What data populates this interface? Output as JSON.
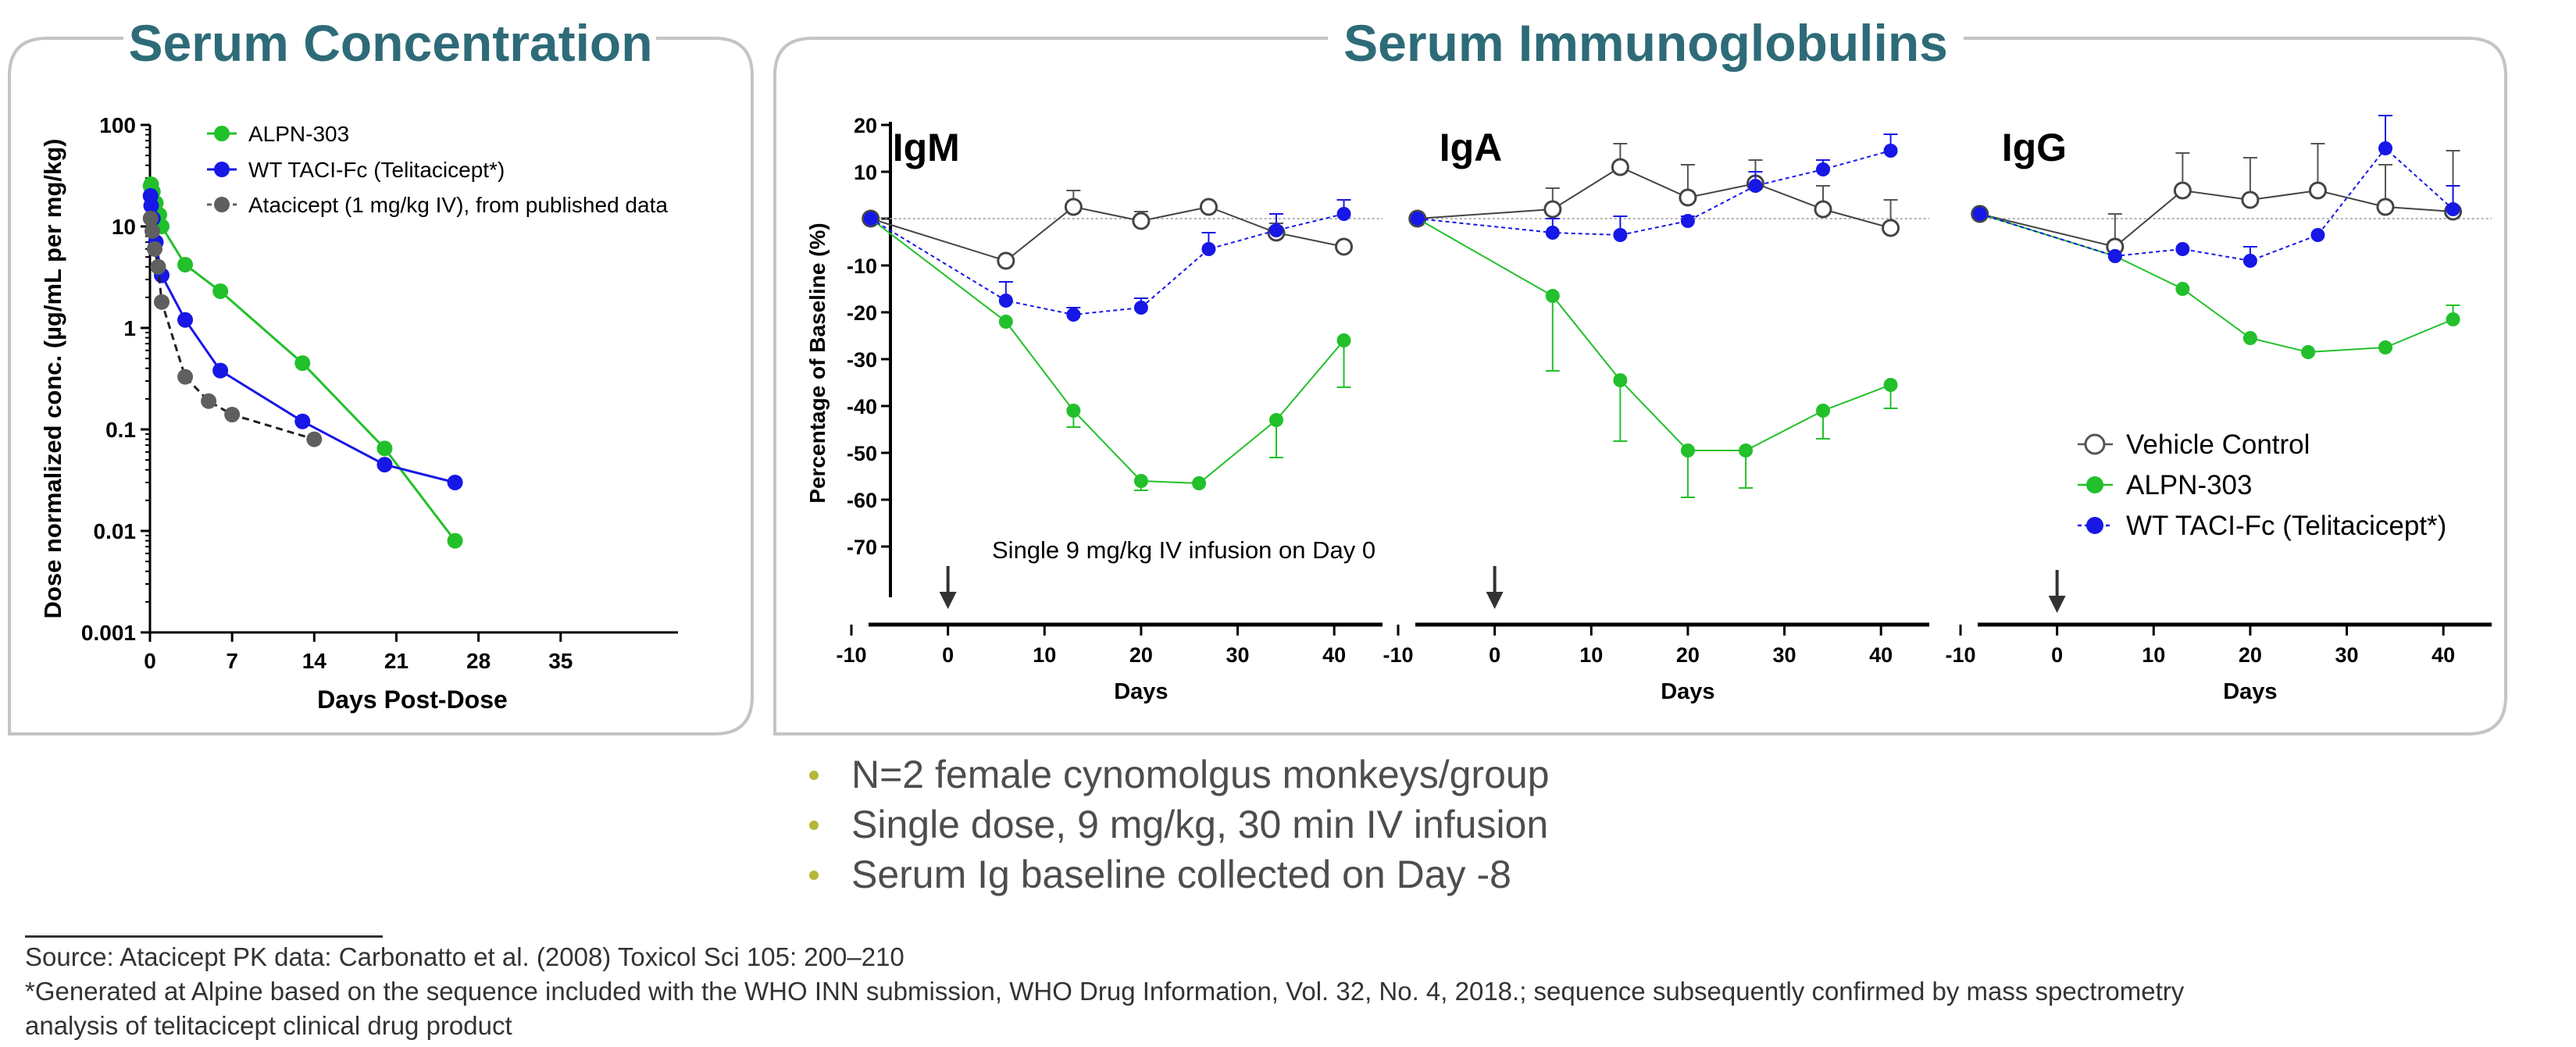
{
  "left_panel": {
    "title": "Serum Concentration"
  },
  "right_panel": {
    "title": "Serum Immunoglobulins"
  },
  "colors": {
    "title": "#2e6b78",
    "alpn": "#22c02a",
    "wt": "#1717e6",
    "atacicept": "#5f5f5f",
    "vehicle": "#555555",
    "frame": "#c4c4c4"
  },
  "chart_data": [
    {
      "id": "pk",
      "type": "line",
      "yscale": "log",
      "title": "Serum Concentration",
      "xlabel": "Days Post-Dose",
      "ylabel": "Dose normalized conc. (µg/mL per mg/kg)",
      "xlim": [
        0,
        45
      ],
      "ylim": [
        0.001,
        100
      ],
      "xticks": [
        0,
        7,
        14,
        21,
        28,
        35
      ],
      "yticks": [
        0.001,
        0.01,
        0.1,
        1,
        10,
        100
      ],
      "ytick_labels": [
        "0.001",
        "0.01",
        "0.1",
        "1",
        "10",
        "100"
      ],
      "legend_position": "top",
      "series": [
        {
          "name": "ALPN-303",
          "color": "#22c02a",
          "dash": false,
          "points": [
            [
              0.05,
              25
            ],
            [
              0.1,
              26
            ],
            [
              0.25,
              22
            ],
            [
              0.5,
              17
            ],
            [
              0.8,
              13
            ],
            [
              1,
              10
            ],
            [
              3,
              4.2
            ],
            [
              6,
              2.3
            ],
            [
              13,
              0.45
            ],
            [
              20,
              0.065
            ],
            [
              26,
              0.008
            ]
          ]
        },
        {
          "name": "WT TACI-Fc (Telitacicept*)",
          "color": "#1717e6",
          "dash": false,
          "points": [
            [
              0.05,
              20
            ],
            [
              0.1,
              16
            ],
            [
              0.25,
              12
            ],
            [
              0.5,
              7
            ],
            [
              1,
              3.3
            ],
            [
              3,
              1.2
            ],
            [
              6,
              0.38
            ],
            [
              13,
              0.12
            ],
            [
              20,
              0.045
            ],
            [
              26,
              0.03
            ]
          ]
        },
        {
          "name": "Atacicept (1 mg/kg IV), from published data",
          "color": "#5f5f5f",
          "dash": true,
          "points": [
            [
              0.05,
              12
            ],
            [
              0.2,
              9
            ],
            [
              0.4,
              6
            ],
            [
              0.7,
              4
            ],
            [
              1,
              1.8
            ],
            [
              3,
              0.33
            ],
            [
              5,
              0.19
            ],
            [
              7,
              0.14
            ],
            [
              14,
              0.08
            ]
          ]
        }
      ]
    },
    {
      "id": "ig",
      "type": "line",
      "title": "Serum Immunoglobulins",
      "ylabel": "Percentage of Baseline (%)",
      "xlabel": "Days",
      "xlim": [
        -10,
        45
      ],
      "ylim": [
        -80,
        20
      ],
      "xticks": [
        -10,
        0,
        10,
        20,
        30,
        40
      ],
      "yticks": [
        20,
        10,
        0,
        -10,
        -20,
        -30,
        -40,
        -50,
        -60,
        -70
      ],
      "annotation": "Single 9 mg/kg IV infusion on Day 0",
      "arrow_day": 0,
      "legend": [
        "Vehicle Control",
        "ALPN-303",
        "WT TACI-Fc (Telitacicept*)"
      ],
      "panels": [
        {
          "title": "IgM",
          "series": [
            {
              "name": "Vehicle Control",
              "x": [
                -8,
                6,
                13,
                20,
                27,
                34,
                41
              ],
              "y": [
                0,
                -9,
                2.5,
                -0.5,
                2.5,
                -3,
                -6
              ],
              "err": [
                0,
                0,
                3.5,
                2,
                0,
                2,
                0
              ]
            },
            {
              "name": "ALPN-303",
              "x": [
                -8,
                6,
                13,
                20,
                26,
                34,
                41
              ],
              "y": [
                0,
                -22,
                -41,
                -56,
                -56.5,
                -43,
                -26
              ],
              "err": [
                0,
                0,
                3.5,
                2,
                0,
                8,
                10
              ]
            },
            {
              "name": "WT TACI-Fc (Telitacicept*)",
              "x": [
                -8,
                6,
                13,
                20,
                27,
                34,
                41
              ],
              "y": [
                0,
                -17.5,
                -20.5,
                -19,
                -6.5,
                -2.5,
                1
              ],
              "err": [
                0,
                4,
                1.5,
                2,
                3.5,
                3.5,
                3
              ]
            }
          ]
        },
        {
          "title": "IgA",
          "series": [
            {
              "name": "Vehicle Control",
              "x": [
                -8,
                6,
                13,
                20,
                27,
                34,
                41
              ],
              "y": [
                0,
                2,
                11,
                4.5,
                7.5,
                2,
                -2
              ],
              "err": [
                0,
                4.5,
                5,
                7,
                5,
                5,
                6
              ]
            },
            {
              "name": "ALPN-303",
              "x": [
                -8,
                6,
                13,
                20,
                26,
                34,
                41
              ],
              "y": [
                0,
                -16.5,
                -34.5,
                -49.5,
                -49.5,
                -41,
                -35.5
              ],
              "err": [
                0,
                16,
                13,
                10,
                8,
                6,
                5
              ]
            },
            {
              "name": "WT TACI-Fc (Telitacicept*)",
              "x": [
                -8,
                6,
                13,
                20,
                27,
                34,
                41
              ],
              "y": [
                0,
                -3,
                -3.5,
                -0.5,
                7,
                10.5,
                14.5
              ],
              "err": [
                0,
                3,
                4,
                1,
                3,
                2,
                3.5
              ]
            }
          ]
        },
        {
          "title": "IgG",
          "series": [
            {
              "name": "Vehicle Control",
              "x": [
                -8,
                6,
                13,
                20,
                27,
                34,
                41
              ],
              "y": [
                1,
                -6,
                6,
                4,
                6,
                2.5,
                1.5
              ],
              "err": [
                0,
                7,
                8,
                9,
                10,
                9,
                13
              ]
            },
            {
              "name": "ALPN-303",
              "x": [
                -8,
                6,
                13,
                20,
                26,
                34,
                41
              ],
              "y": [
                1,
                -8,
                -15,
                -25.5,
                -28.5,
                -27.5,
                -21.5
              ],
              "err": [
                0,
                0,
                0,
                0,
                0,
                0,
                3
              ]
            },
            {
              "name": "WT TACI-Fc (Telitacicept*)",
              "x": [
                -8,
                6,
                13,
                20,
                27,
                34,
                41
              ],
              "y": [
                1,
                -8,
                -6.5,
                -9,
                -3.5,
                15,
                2
              ],
              "err": [
                0,
                0,
                0,
                3,
                0,
                7,
                5
              ]
            }
          ]
        }
      ]
    }
  ],
  "bullets": [
    "N=2 female cynomolgus monkeys/group",
    "Single dose, 9 mg/kg, 30 min IV infusion",
    "Serum Ig baseline collected on Day -8"
  ],
  "footnotes": {
    "source": "Source: Atacicept PK data: Carbonatto et al. (2008)  Toxicol Sci 105: 200–210",
    "generated_line1": "*Generated at Alpine based on the sequence included with the WHO INN submission, WHO Drug Information, Vol. 32, No. 4, 2018.; sequence subsequently confirmed by mass spectrometry",
    "generated_line2": "analysis of telitacicept clinical drug product"
  }
}
